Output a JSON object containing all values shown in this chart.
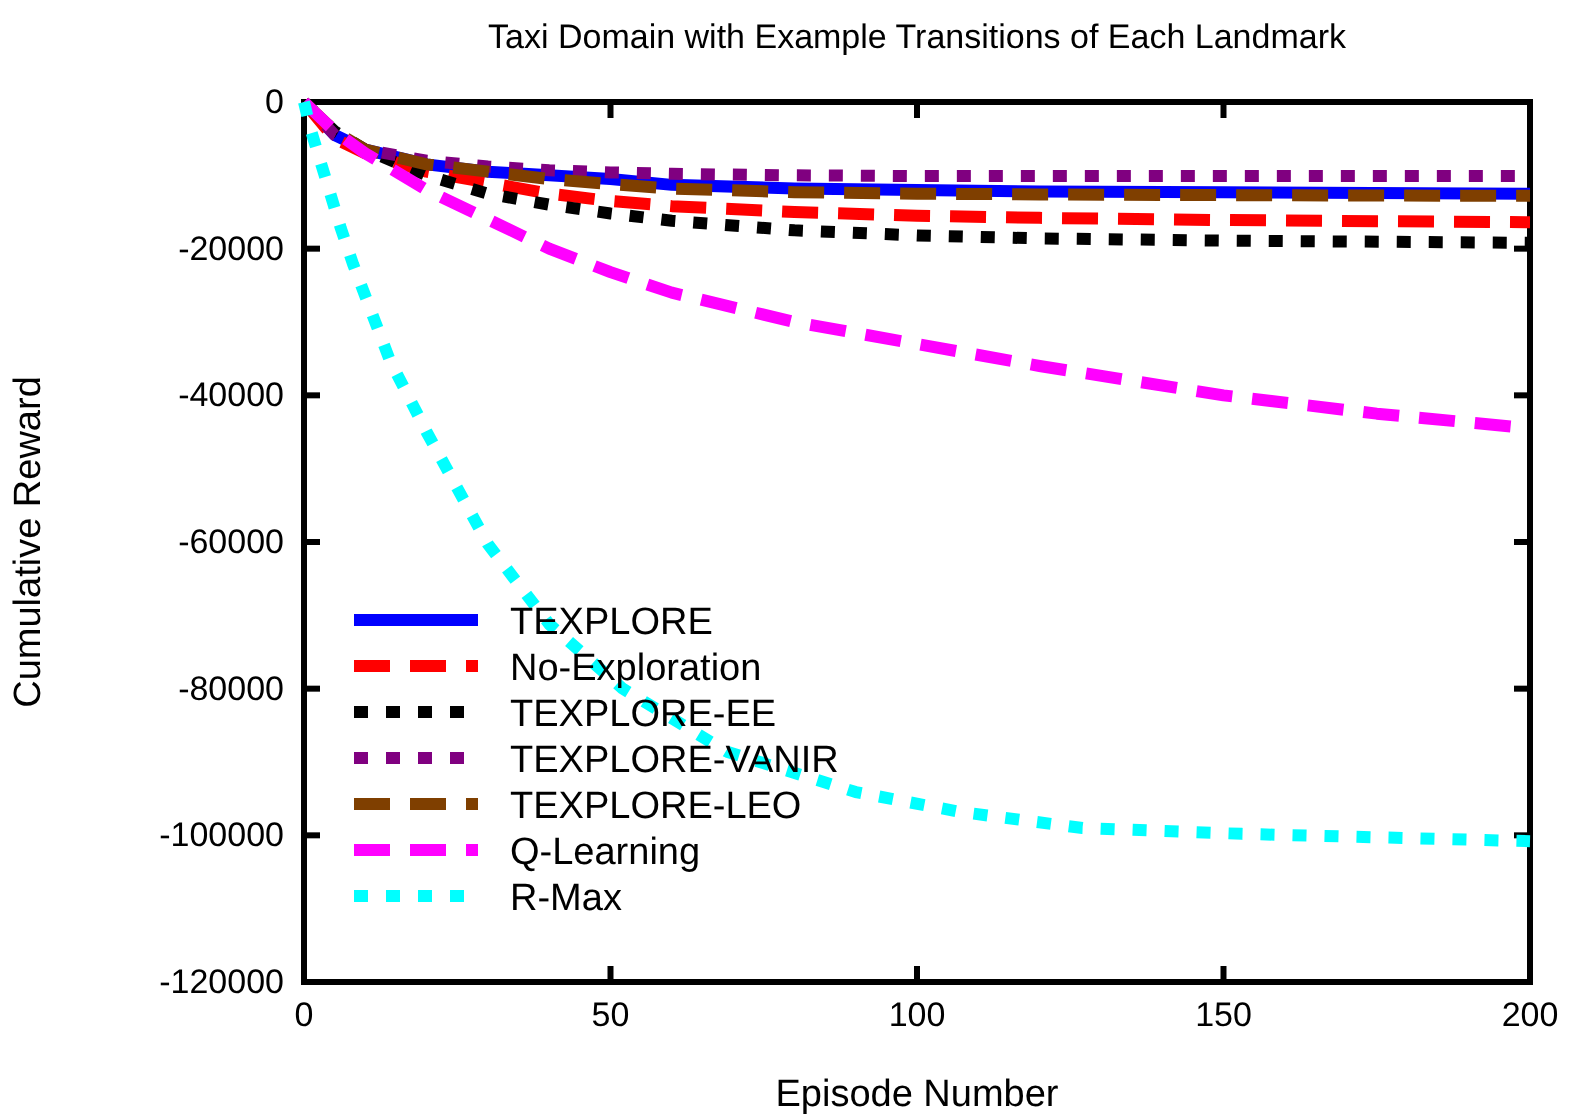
{
  "chart_data": {
    "type": "line",
    "title": "Taxi Domain with Example Transitions of Each Landmark",
    "xlabel": "Episode Number",
    "ylabel": "Cumulative Reward",
    "x": [
      0,
      5,
      10,
      20,
      30,
      40,
      50,
      60,
      80,
      100,
      120,
      150,
      200
    ],
    "xlim": [
      0,
      200
    ],
    "xticks": [
      0,
      50,
      100,
      150,
      200
    ],
    "ylim": [
      -120000,
      0
    ],
    "yticks": [
      -120000,
      -100000,
      -80000,
      -60000,
      -40000,
      -20000,
      0
    ],
    "grid": false,
    "legend": "bottom left",
    "marker": "none",
    "series": [
      {
        "name": "TEXPLORE",
        "color": "#0000ff",
        "line_style": "solid",
        "values": [
          0,
          -4500,
          -6500,
          -8500,
          -9500,
          -10000,
          -10500,
          -11300,
          -11800,
          -12000,
          -12200,
          -12300,
          -12500
        ]
      },
      {
        "name": "No-Exploration",
        "color": "#ff0000",
        "line_style": "dashed",
        "values": [
          0,
          -5000,
          -7000,
          -9500,
          -11000,
          -12500,
          -13500,
          -14200,
          -15000,
          -15500,
          -15800,
          -16100,
          -16400
        ]
      },
      {
        "name": "TEXPLORE-EE",
        "color": "#000000",
        "line_style": "dotted",
        "values": [
          0,
          -4000,
          -6500,
          -10000,
          -12500,
          -14000,
          -15200,
          -16200,
          -17500,
          -18200,
          -18600,
          -18900,
          -19200
        ]
      },
      {
        "name": "TEXPLORE-VANIR",
        "color": "#800080",
        "line_style": "dotted",
        "values": [
          0,
          -4500,
          -6500,
          -8000,
          -8800,
          -9300,
          -9600,
          -9800,
          -10000,
          -10100,
          -10100,
          -10100,
          -10100
        ]
      },
      {
        "name": "TEXPLORE-LEO",
        "color": "#7f3f00",
        "line_style": "dashed",
        "values": [
          0,
          -4000,
          -6500,
          -8500,
          -9500,
          -10500,
          -11200,
          -11800,
          -12300,
          -12500,
          -12600,
          -12700,
          -12800
        ]
      },
      {
        "name": "Q-Learning",
        "color": "#ff00ff",
        "line_style": "dashed",
        "x": [
          0,
          5,
          10,
          20,
          30,
          40,
          50,
          60,
          80,
          100,
          120,
          150,
          175,
          200
        ],
        "values": [
          0,
          -4000,
          -7000,
          -12000,
          -16000,
          -20000,
          -23200,
          -26000,
          -30000,
          -33000,
          -36000,
          -40000,
          -42500,
          -44500
        ]
      },
      {
        "name": "R-Max",
        "color": "#00ffff",
        "line_style": "dotted",
        "x": [
          0,
          1,
          6,
          8,
          14,
          20,
          30,
          40,
          52,
          69,
          90,
          107,
          127,
          153,
          200
        ],
        "values": [
          0,
          -3500,
          -17200,
          -22100,
          -35200,
          -45000,
          -60300,
          -71200,
          -80000,
          -88600,
          -94100,
          -96800,
          -99000,
          -99800,
          -100800
        ]
      }
    ]
  }
}
